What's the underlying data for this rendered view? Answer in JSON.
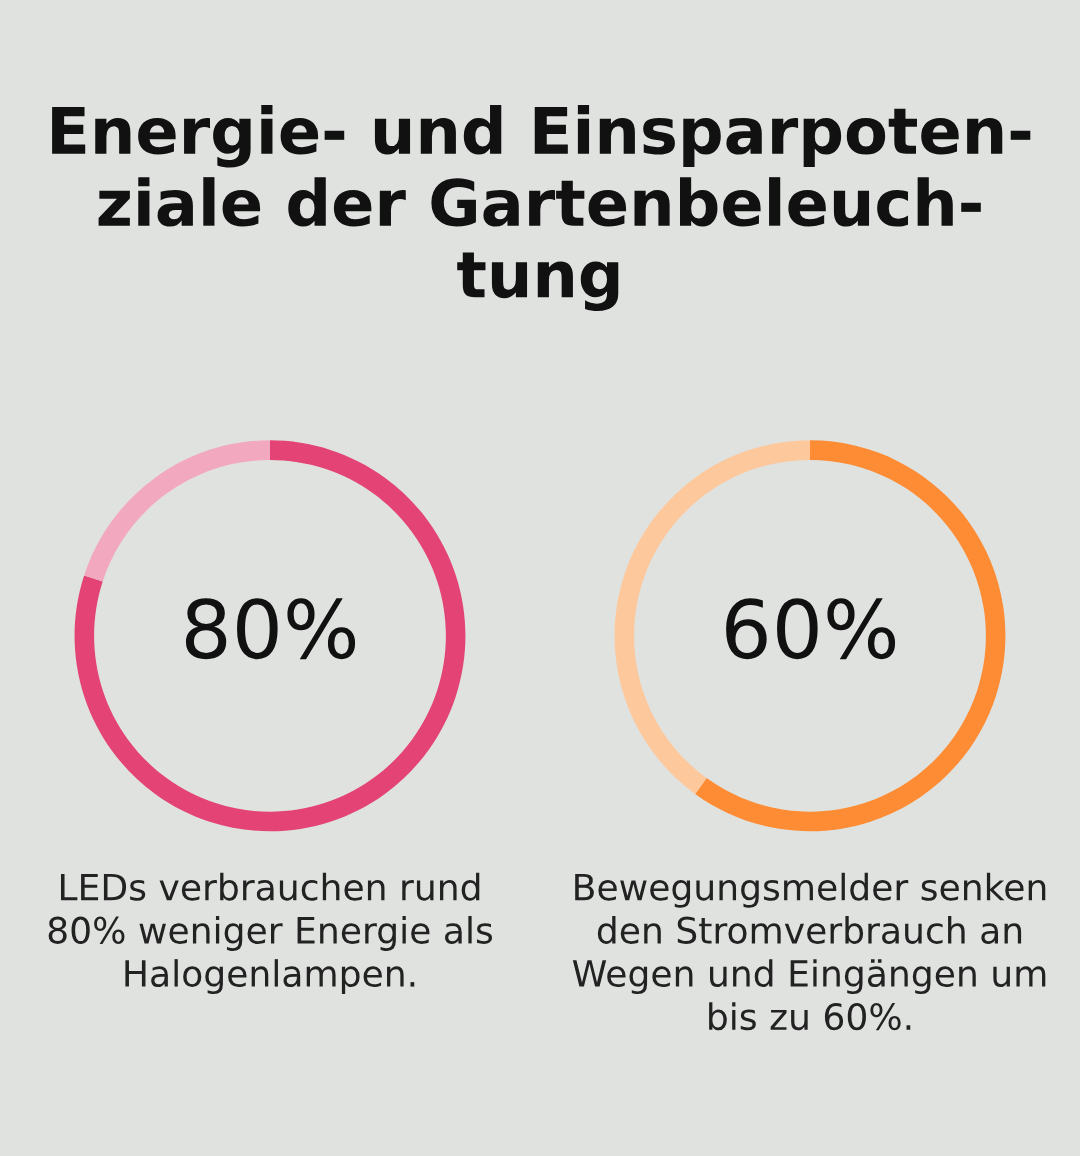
{
  "chart_data": [
    {
      "type": "donut",
      "title": "Energie- und Einsparpoten-\nziale der Gartenbeleuch-\ntung",
      "categories": [
        null,
        null
      ],
      "values": [
        80,
        20
      ],
      "colors": [
        "#e34475",
        "#f2a9bf"
      ],
      "value_labels": [
        "80%",
        null
      ],
      "annotations": [
        "LEDs verbrauchen rund\n80% weniger Energie als\nHalogenlampen."
      ]
    },
    {
      "type": "donut",
      "categories": [
        null,
        null
      ],
      "values": [
        60,
        40
      ],
      "colors": [
        "#fd8c34",
        "#fdc89c"
      ],
      "value_labels": [
        "60%",
        null
      ],
      "annotations": [
        "Bewegungsmelder senken\nden Stromverbrauch an\nWegen und Eingängen um\nbis zu 60%."
      ]
    }
  ]
}
